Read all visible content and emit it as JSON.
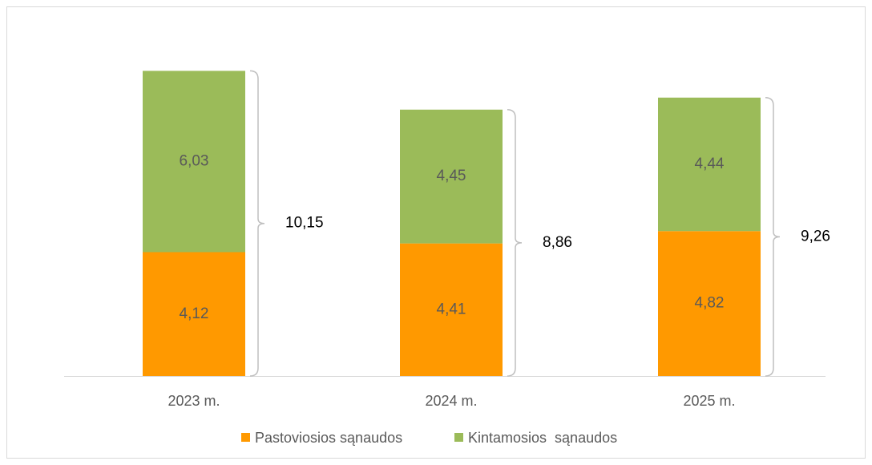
{
  "chart_data": {
    "type": "stacked-bar",
    "categories": [
      "2023 m.",
      "2024 m.",
      "2025 m."
    ],
    "series": [
      {
        "name": "Pastoviosios sąnaudos",
        "color": "#ff9900",
        "values": [
          4.12,
          4.41,
          4.82
        ],
        "value_labels": [
          "4,12",
          "4,41",
          "4,82"
        ]
      },
      {
        "name": "Kintamosios  sąnaudos",
        "color": "#9bbb59",
        "values": [
          6.03,
          4.45,
          4.44
        ],
        "value_labels": [
          "6,03",
          "4,45",
          "4,44"
        ]
      }
    ],
    "totals": [
      10.15,
      8.86,
      9.26
    ],
    "total_labels": [
      "10,15",
      "8,86",
      "9,26"
    ],
    "legend": "bottom"
  }
}
